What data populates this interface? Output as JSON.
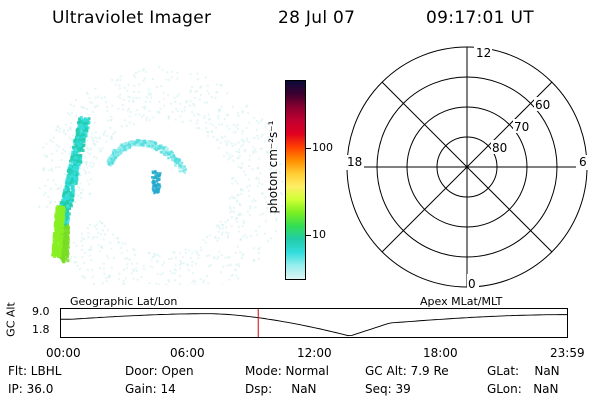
{
  "header": {
    "title": "Ultraviolet Imager",
    "date": "28 Jul 07",
    "time": "09:17:01 UT"
  },
  "colorbar": {
    "unit": "photon cm⁻²s⁻¹",
    "ticks": [
      "100",
      "10"
    ],
    "colors": [
      "#0b0b3a",
      "#3d0030",
      "#8a0030",
      "#c00030",
      "#e00020",
      "#ff4000",
      "#ff8c00",
      "#ffcc33",
      "#ffee66",
      "#ccff33",
      "#77ee22",
      "#33dd55",
      "#22ccaa",
      "#33dddd",
      "#99eeee",
      "#ddf4f4"
    ]
  },
  "polar": {
    "labels": {
      "top": "12",
      "bottom": "0",
      "left": "18",
      "right": "6"
    },
    "lat_labels": [
      "60",
      "70",
      "80"
    ]
  },
  "timeline": {
    "left_label": "Geographic Lat/Lon",
    "right_label": "Apex MLat/MLT",
    "ylabel": "GC Alt",
    "y_ticks": [
      "9.0",
      "1.8"
    ],
    "x_ticks": [
      "00:00",
      "06:00",
      "12:00",
      "18:00",
      "23:59"
    ],
    "marker_color": "#d00000"
  },
  "info": {
    "flt": "Flt: LBHL",
    "ip": "IP: 36.0",
    "door": "Door: Open",
    "gain": "Gain: 14",
    "mode": "Mode: Normal",
    "dsp": "Dsp:     NaN",
    "gcalt": "GC Alt: 7.9 Re",
    "seq": "Seq: 39",
    "glat": "GLat:    NaN",
    "glon": "GLon:   NaN"
  }
}
